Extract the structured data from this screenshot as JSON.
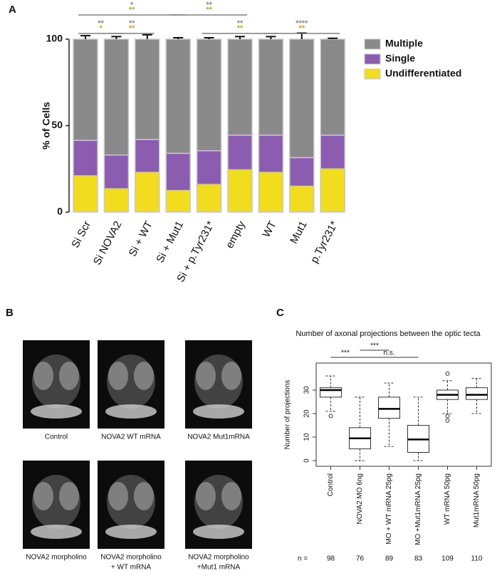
{
  "panels": [
    "A",
    "B",
    "C"
  ],
  "chart_data": [
    {
      "type": "stacked-bar",
      "ylabel": "% of Cells",
      "categories": [
        "Si Scr",
        "Si NOVA2",
        "Si + WT",
        "Si + Mut1",
        "Si + p.Tyr231*",
        "empty",
        "WT",
        "Mut1",
        "p.Tyr231*"
      ],
      "series": [
        {
          "name": "Undifferentiated",
          "color": "#f2dc1e",
          "values": [
            21,
            13.5,
            23,
            12.5,
            16,
            24.5,
            23,
            15,
            25
          ],
          "errors": [
            1,
            1.5,
            1,
            0.8,
            0.8,
            1,
            0.6,
            1,
            0.8
          ]
        },
        {
          "name": "Single",
          "color": "#8c5cb0",
          "values": [
            20.5,
            19.5,
            19,
            21.5,
            19.5,
            20,
            21.5,
            16.5,
            19.5
          ],
          "errors": [
            2,
            1.5,
            2,
            1,
            1,
            2.5,
            1.5,
            2.5,
            1
          ]
        },
        {
          "name": "Multiple",
          "color": "#8a8a8a",
          "values": [
            58.5,
            67,
            58,
            66,
            64.5,
            55.5,
            55.5,
            68.5,
            55.5
          ],
          "errors": [
            2,
            1.5,
            2.5,
            0.8,
            0.8,
            1.5,
            1.5,
            3.5,
            0.5
          ]
        }
      ],
      "ylim": [
        0,
        100
      ],
      "yticks": [
        0,
        50,
        100
      ],
      "annotations": [
        {
          "from": 0,
          "to": 3,
          "level": 2,
          "labels": [
            {
              "text": "*",
              "color": "#8a8a8a"
            },
            {
              "text": "**",
              "color": "#c9a227"
            }
          ]
        },
        {
          "from": 3,
          "to": 5,
          "level": 2,
          "labels": [
            {
              "text": "**",
              "color": "#8a8a8a"
            },
            {
              "text": "**",
              "color": "#c9a227"
            }
          ]
        },
        {
          "from": 0,
          "to": 1,
          "level": 1,
          "labels": [
            {
              "text": "**",
              "color": "#8a8a8a"
            },
            {
              "text": "*",
              "color": "#c9a227"
            }
          ]
        },
        {
          "from": 1,
          "to": 2,
          "level": 1,
          "labels": [
            {
              "text": "**",
              "color": "#8a8a8a"
            },
            {
              "text": "**",
              "color": "#c9a227"
            }
          ]
        },
        {
          "from": 4,
          "to": 6,
          "level": 1,
          "labels": [
            {
              "text": "**",
              "color": "#8a8a8a"
            },
            {
              "text": "**",
              "color": "#c9a227"
            }
          ]
        },
        {
          "from": 6,
          "to": 8,
          "level": 1,
          "labels": [
            {
              "text": "****",
              "color": "#8a8a8a"
            },
            {
              "text": "**",
              "color": "#c9a227"
            }
          ]
        }
      ]
    },
    {
      "type": "box",
      "title": "Number of axonal projections between the optic tecta",
      "ylabel": "Number of projections",
      "categories": [
        "Control",
        "NOVA2 MO 6ng",
        "MO + WT mRNA 25pg",
        "MO +Mut1mRNA 25pg",
        "WT mRNA 50pg",
        "Mut1mRNA 50pg"
      ],
      "boxes": [
        {
          "whisker_low": 21,
          "q1": 27,
          "median": 30,
          "q3": 31,
          "whisker_high": 36,
          "outliers": [
            19
          ]
        },
        {
          "whisker_low": 0,
          "q1": 5,
          "median": 9.5,
          "q3": 14,
          "whisker_high": 27,
          "outliers": []
        },
        {
          "whisker_low": 6,
          "q1": 18,
          "median": 22,
          "q3": 27,
          "whisker_high": 33,
          "outliers": []
        },
        {
          "whisker_low": 0,
          "q1": 3.5,
          "median": 9,
          "q3": 15,
          "whisker_high": 27,
          "outliers": []
        },
        {
          "whisker_low": 20,
          "q1": 26,
          "median": 28,
          "q3": 30,
          "whisker_high": 34,
          "outliers": [
            37,
            19,
            17
          ]
        },
        {
          "whisker_low": 20,
          "q1": 26,
          "median": 28,
          "q3": 31,
          "whisker_high": 35,
          "outliers": []
        }
      ],
      "ylim": [
        -2.4,
        41.5
      ],
      "yticks": [
        0,
        10,
        20,
        30
      ],
      "n_label": "n =",
      "n": [
        98,
        76,
        89,
        83,
        109,
        110
      ],
      "annotations": [
        {
          "from": 0,
          "to": 1,
          "level": 1,
          "label": "***"
        },
        {
          "from": 1,
          "to": 2,
          "level": 2,
          "label": "***"
        },
        {
          "from": 1,
          "to": 3,
          "level": 1,
          "label": "n.s."
        }
      ]
    }
  ],
  "images": {
    "captions": [
      [
        "Control"
      ],
      [
        "NOVA2 WT mRNA"
      ],
      [
        "NOVA2 Mut1mRNA"
      ],
      [
        "NOVA2 morpholino"
      ],
      [
        "NOVA2 morpholino",
        "+ WT mRNA"
      ],
      [
        "NOVA2 morpholino",
        "+Mut1 mRNA"
      ]
    ]
  }
}
